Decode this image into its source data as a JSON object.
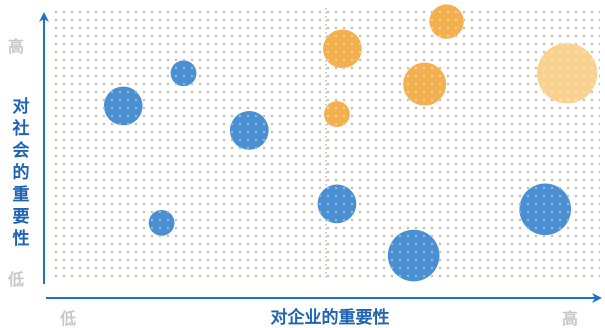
{
  "chart_data": {
    "type": "scatter",
    "xlabel": "对企业的重要性",
    "ylabel": "对社会的重要性",
    "x_tick_labels": [
      "低",
      "高"
    ],
    "y_tick_labels": [
      "高",
      "低"
    ],
    "xlim": [
      0,
      100
    ],
    "ylim": [
      0,
      100
    ],
    "grid": "dotted",
    "divider_x": 50,
    "colors": {
      "blue": "#4a8fd1",
      "orange": "#f2b04f",
      "light_orange": "#f9d28f",
      "axis": "#2070c8"
    },
    "points": [
      {
        "x": 13,
        "y": 64,
        "r": 9,
        "color": "blue"
      },
      {
        "x": 24,
        "y": 76,
        "r": 6,
        "color": "blue"
      },
      {
        "x": 36,
        "y": 55,
        "r": 9,
        "color": "blue"
      },
      {
        "x": 20,
        "y": 21,
        "r": 6,
        "color": "blue"
      },
      {
        "x": 52,
        "y": 28,
        "r": 9,
        "color": "blue"
      },
      {
        "x": 66,
        "y": 9,
        "r": 12,
        "color": "blue"
      },
      {
        "x": 90,
        "y": 26,
        "r": 12,
        "color": "blue"
      },
      {
        "x": 53,
        "y": 85,
        "r": 9,
        "color": "orange"
      },
      {
        "x": 52,
        "y": 61,
        "r": 6,
        "color": "orange"
      },
      {
        "x": 68,
        "y": 72,
        "r": 10,
        "color": "orange"
      },
      {
        "x": 72,
        "y": 95,
        "r": 8,
        "color": "orange"
      },
      {
        "x": 94,
        "y": 76,
        "r": 14,
        "color": "light_orange"
      }
    ]
  }
}
